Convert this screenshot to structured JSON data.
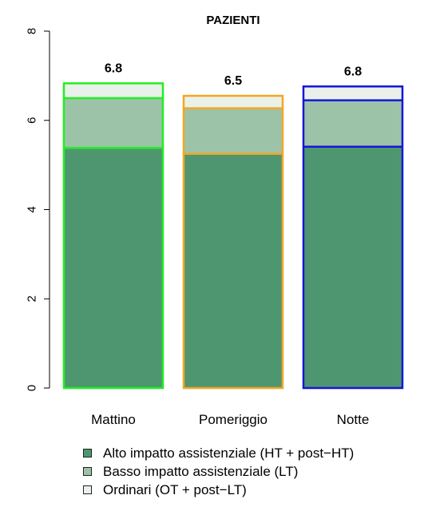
{
  "chart_data": {
    "type": "bar",
    "stacked": true,
    "title": "PAZIENTI",
    "categories": [
      "Mattino",
      "Pomeriggio",
      "Notte"
    ],
    "totals_labels": [
      "6.8",
      "6.5",
      "6.8"
    ],
    "series": [
      {
        "name": "Alto impatto assistenziale (HT + post−HT)",
        "values": [
          5.38,
          5.25,
          5.41
        ],
        "color": "#4e9670"
      },
      {
        "name": "Basso impatto assistenziale (LT)",
        "values": [
          1.12,
          1.02,
          1.04
        ],
        "color": "#9cc3a8"
      },
      {
        "name": "Ordinari (OT + post−LT)",
        "values": [
          0.33,
          0.28,
          0.31
        ],
        "color": "#e9f1ea"
      }
    ],
    "bar_border_colors": [
      "#22ee22",
      "#f5a623",
      "#1515d8"
    ],
    "yticks": [
      "0",
      "2",
      "4",
      "6",
      "8"
    ],
    "ylim": [
      0,
      8
    ],
    "legend_position": "bottom"
  }
}
